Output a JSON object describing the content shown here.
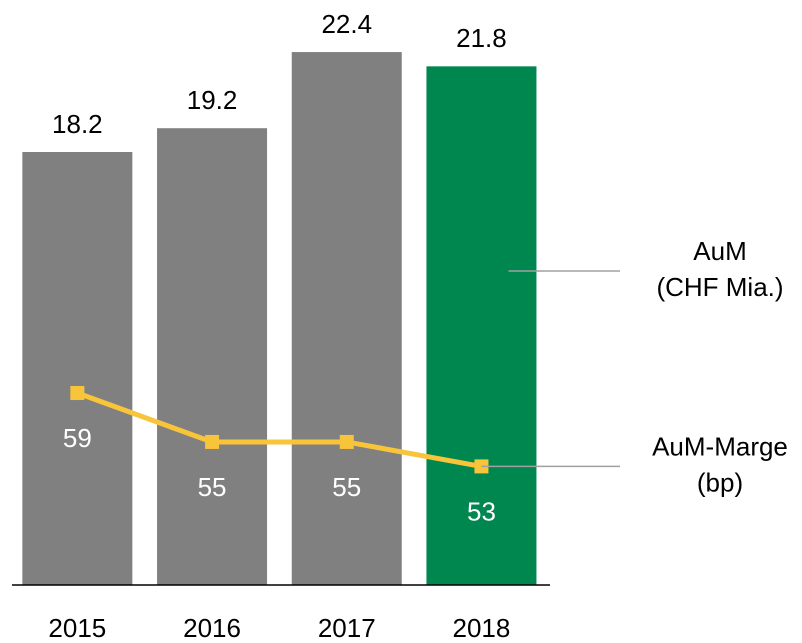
{
  "chart_data": {
    "type": "bar",
    "categories": [
      "2015",
      "2016",
      "2017",
      "2018"
    ],
    "ylim": [
      0,
      24
    ],
    "y2lim": [
      43.3,
      90
    ],
    "series": [
      {
        "name": "AuM (CHF Mia.)",
        "type": "bar",
        "colors": [
          "#808080",
          "#808080",
          "#808080",
          "#00874f"
        ],
        "values": [
          18.2,
          19.2,
          22.4,
          21.8
        ]
      },
      {
        "name": "AuM-Marge (bp)",
        "type": "line",
        "axis": "y2",
        "color": "#f8c43a",
        "values": [
          59,
          55,
          55,
          53
        ]
      }
    ]
  }
}
